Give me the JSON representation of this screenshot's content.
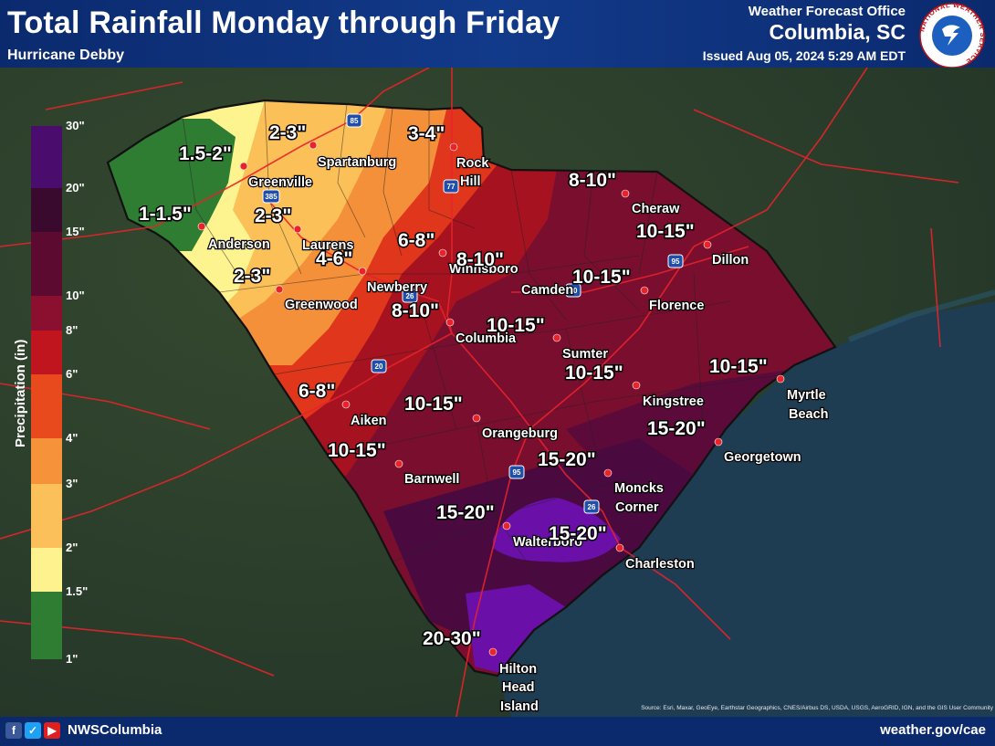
{
  "header": {
    "title": "Total Rainfall Monday through Friday",
    "subtitle": "Hurricane Debby",
    "office_line1": "Weather Forecast Office",
    "office_line2": "Columbia, SC",
    "issued": "Issued Aug 05, 2024 5:29 AM EDT",
    "logo_text": "NATIONAL WEATHER SERVICE"
  },
  "legend": {
    "title": "Precipitation (in)",
    "ticks": [
      "30\"",
      "20\"",
      "15\"",
      "10\"",
      "8\"",
      "6\"",
      "4\"",
      "3\"",
      "2\"",
      "1.5\"",
      "1\""
    ],
    "colors": [
      "#4a0d6e",
      "#3a0a2e",
      "#5c0a30",
      "#8b1030",
      "#c0141e",
      "#e84a1e",
      "#f5923a",
      "#fcc05a",
      "#fdf28e",
      "#2e7d32"
    ]
  },
  "amounts": [
    {
      "text": "1.5-2\""
    },
    {
      "text": "2-3\""
    },
    {
      "text": "3-4\""
    },
    {
      "text": "1-1.5\""
    },
    {
      "text": "2-3\""
    },
    {
      "text": "8-10\""
    },
    {
      "text": "6-8\""
    },
    {
      "text": "4-6\""
    },
    {
      "text": "8-10\""
    },
    {
      "text": "10-15\""
    },
    {
      "text": "2-3\""
    },
    {
      "text": "10-15\""
    },
    {
      "text": "8-10\""
    },
    {
      "text": "10-15\""
    },
    {
      "text": "10-15\""
    },
    {
      "text": "10-15\""
    },
    {
      "text": "6-8\""
    },
    {
      "text": "10-15\""
    },
    {
      "text": "15-20\""
    },
    {
      "text": "10-15\""
    },
    {
      "text": "15-20\""
    },
    {
      "text": "15-20\""
    },
    {
      "text": "15-20\""
    },
    {
      "text": "20-30\""
    }
  ],
  "cities": [
    {
      "name": "Spartanburg"
    },
    {
      "name": "Rock"
    },
    {
      "name": "Hill"
    },
    {
      "name": "Greenville"
    },
    {
      "name": "Anderson"
    },
    {
      "name": "Laurens"
    },
    {
      "name": "Cheraw"
    },
    {
      "name": "Winnsboro"
    },
    {
      "name": "Dillon"
    },
    {
      "name": "Newberry"
    },
    {
      "name": "Camden"
    },
    {
      "name": "Greenwood"
    },
    {
      "name": "Florence"
    },
    {
      "name": "Columbia"
    },
    {
      "name": "Sumter"
    },
    {
      "name": "Myrtle"
    },
    {
      "name": "Beach"
    },
    {
      "name": "Kingstree"
    },
    {
      "name": "Aiken"
    },
    {
      "name": "Orangeburg"
    },
    {
      "name": "Georgetown"
    },
    {
      "name": "Barnwell"
    },
    {
      "name": "Moncks"
    },
    {
      "name": "Corner"
    },
    {
      "name": "Walterboro"
    },
    {
      "name": "Charleston"
    },
    {
      "name": "Hilton"
    },
    {
      "name": "Head"
    },
    {
      "name": "Island"
    }
  ],
  "shields": [
    "85",
    "385",
    "77",
    "26",
    "20",
    "95",
    "20",
    "95",
    "26"
  ],
  "footer": {
    "handle": "NWSColumbia",
    "website": "weather.gov/cae",
    "source": "Source: Esri, Maxar, GeoEye, Earthstar Geographics, CNES/Airbus DS, USDA, USGS, AeroGRID, IGN, and the GIS User Community"
  },
  "colors": {
    "header_bg": "#0b2a6e",
    "map_bg": "#243a2c",
    "ocean": "#1e3a4a",
    "outline": "#111111",
    "road": "#e8232a",
    "city_dot": "#e8232a"
  }
}
